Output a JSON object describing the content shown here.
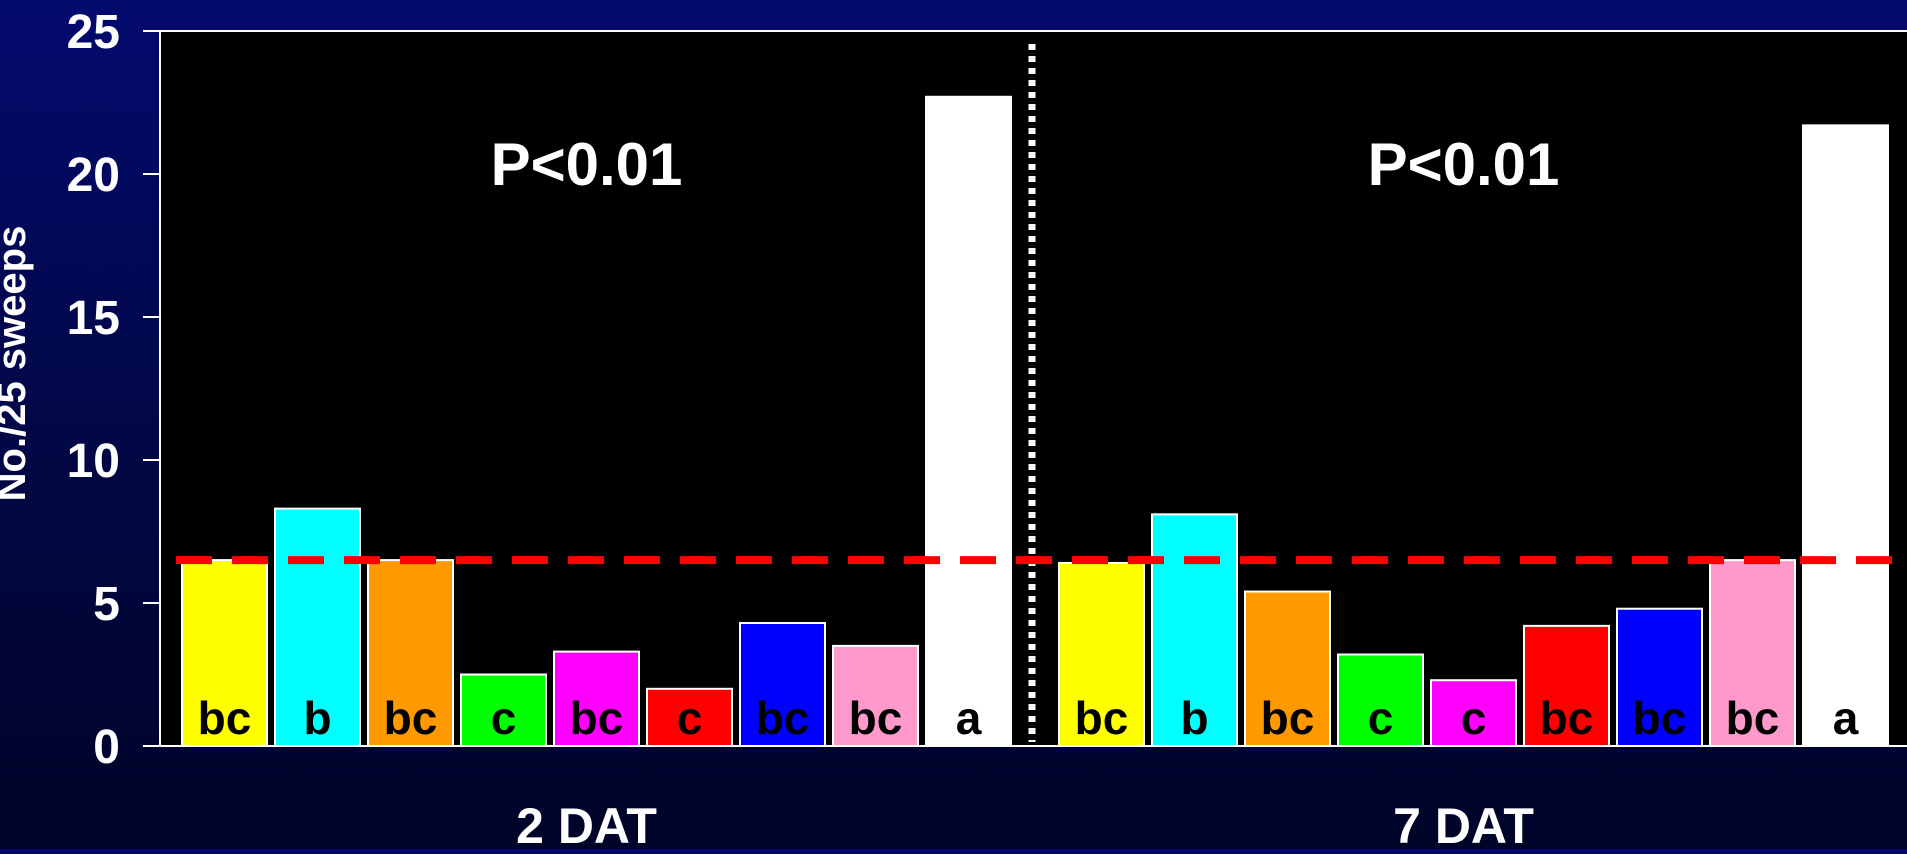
{
  "chart_data": {
    "type": "bar",
    "ylabel": "No./25 sweeps",
    "ylim": [
      0,
      25
    ],
    "yticks": [
      "0",
      "5",
      "10",
      "15",
      "20",
      "25"
    ],
    "reference_line": {
      "value": 6.5,
      "color": "#ff0000",
      "style": "dashed"
    },
    "groups": [
      {
        "label": "2 DAT",
        "annotation": "P<0.01",
        "bars": [
          {
            "value": 6.5,
            "letter": "bc",
            "color": "#ffff00"
          },
          {
            "value": 8.3,
            "letter": "b",
            "color": "#00ffff"
          },
          {
            "value": 6.5,
            "letter": "bc",
            "color": "#ff9900"
          },
          {
            "value": 2.5,
            "letter": "c",
            "color": "#00ff00"
          },
          {
            "value": 3.3,
            "letter": "bc",
            "color": "#ff00ff"
          },
          {
            "value": 2.0,
            "letter": "c",
            "color": "#ff0000"
          },
          {
            "value": 4.3,
            "letter": "bc",
            "color": "#0000ff"
          },
          {
            "value": 3.5,
            "letter": "bc",
            "color": "#ff99cc"
          },
          {
            "value": 22.7,
            "letter": "a",
            "color": "#ffffff"
          }
        ]
      },
      {
        "label": "7 DAT",
        "annotation": "P<0.01",
        "bars": [
          {
            "value": 6.4,
            "letter": "bc",
            "color": "#ffff00"
          },
          {
            "value": 8.1,
            "letter": "b",
            "color": "#00ffff"
          },
          {
            "value": 5.4,
            "letter": "bc",
            "color": "#ff9900"
          },
          {
            "value": 3.2,
            "letter": "c",
            "color": "#00ff00"
          },
          {
            "value": 2.3,
            "letter": "c",
            "color": "#ff00ff"
          },
          {
            "value": 4.2,
            "letter": "bc",
            "color": "#ff0000"
          },
          {
            "value": 4.8,
            "letter": "bc",
            "color": "#0000ff"
          },
          {
            "value": 6.5,
            "letter": "bc",
            "color": "#ff99cc"
          },
          {
            "value": 21.7,
            "letter": "a",
            "color": "#ffffff"
          }
        ]
      }
    ],
    "colors": {
      "plot_background": "#000000",
      "text": "#ffffff",
      "divider": "#ffffff",
      "axis": "#ffffff"
    }
  }
}
